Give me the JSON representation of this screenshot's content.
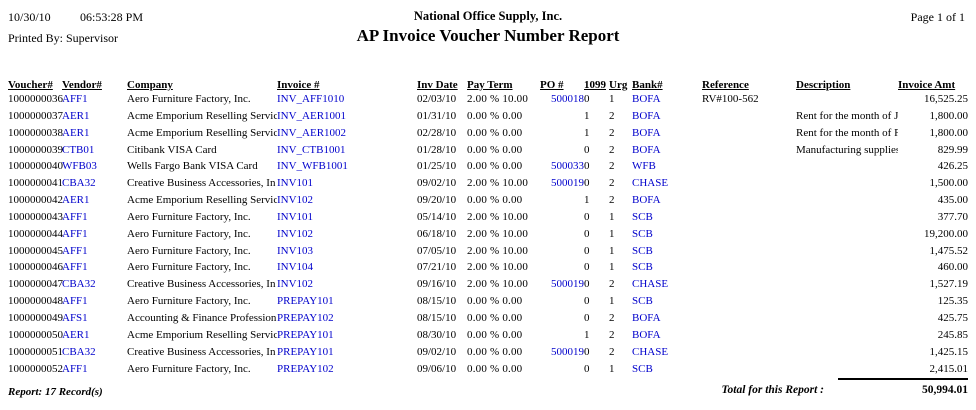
{
  "header": {
    "print_date": "10/30/10",
    "print_time": "06:53:28 PM",
    "printed_by": "Printed By: Supervisor",
    "company_name": "National Office Supply, Inc.",
    "report_title": "AP Invoice Voucher Number Report",
    "page_indicator": "Page 1 of 1"
  },
  "colors": {
    "link_blue": "#0000CC",
    "text": "#000000"
  },
  "table": {
    "columns": [
      "Voucher#",
      "Vendor#",
      "Company",
      "Invoice #",
      "Inv Date",
      "Pay Term",
      "PO #",
      "1099",
      "Urg",
      "Bank#",
      "Reference",
      "Description",
      "Invoice Amt"
    ],
    "rows": [
      {
        "voucher": "1000000036",
        "vendor": "AFF1",
        "company": "Aero Furniture Factory, Inc.",
        "invoice": "INV_AFF1010",
        "inv_date": "02/03/10",
        "pay_term": "2.00 % 10.00",
        "po": "500018",
        "f1099": "0",
        "urg": "1",
        "bank": "BOFA",
        "reference": "RV#100-562",
        "description": "",
        "amount": "16,525.25"
      },
      {
        "voucher": "1000000037",
        "vendor": "AER1",
        "company": "Acme Emporium Reselling Servic",
        "invoice": "INV_AER1001",
        "inv_date": "01/31/10",
        "pay_term": "0.00 % 0.00",
        "po": "",
        "f1099": "1",
        "urg": "2",
        "bank": "BOFA",
        "reference": "",
        "description": "Rent for the month of Ja",
        "amount": "1,800.00"
      },
      {
        "voucher": "1000000038",
        "vendor": "AER1",
        "company": "Acme Emporium Reselling Servic",
        "invoice": "INV_AER1002",
        "inv_date": "02/28/10",
        "pay_term": "0.00 % 0.00",
        "po": "",
        "f1099": "1",
        "urg": "2",
        "bank": "BOFA",
        "reference": "",
        "description": "Rent for the month of F",
        "amount": "1,800.00"
      },
      {
        "voucher": "1000000039",
        "vendor": "CTB01",
        "company": "Citibank VISA Card",
        "invoice": "INV_CTB1001",
        "inv_date": "01/28/10",
        "pay_term": "0.00 % 0.00",
        "po": "",
        "f1099": "0",
        "urg": "2",
        "bank": "BOFA",
        "reference": "",
        "description": "Manufacturing supplies",
        "amount": "829.99"
      },
      {
        "voucher": "1000000040",
        "vendor": "WFB03",
        "company": "Wells Fargo Bank VISA Card",
        "invoice": "INV_WFB1001",
        "inv_date": "01/25/10",
        "pay_term": "0.00 % 0.00",
        "po": "500033",
        "f1099": "0",
        "urg": "2",
        "bank": "WFB",
        "reference": "",
        "description": "",
        "amount": "426.25"
      },
      {
        "voucher": "1000000041",
        "vendor": "CBA32",
        "company": "Creative Business Accessories, In",
        "invoice": "INV101",
        "inv_date": "09/02/10",
        "pay_term": "2.00 % 10.00",
        "po": "500019",
        "f1099": "0",
        "urg": "2",
        "bank": "CHASE",
        "reference": "",
        "description": "",
        "amount": "1,500.00"
      },
      {
        "voucher": "1000000042",
        "vendor": "AER1",
        "company": "Acme Emporium Reselling Servic",
        "invoice": "INV102",
        "inv_date": "09/20/10",
        "pay_term": "0.00 % 0.00",
        "po": "",
        "f1099": "1",
        "urg": "2",
        "bank": "BOFA",
        "reference": "",
        "description": "",
        "amount": "435.00"
      },
      {
        "voucher": "1000000043",
        "vendor": "AFF1",
        "company": "Aero Furniture Factory, Inc.",
        "invoice": "INV101",
        "inv_date": "05/14/10",
        "pay_term": "2.00 % 10.00",
        "po": "",
        "f1099": "0",
        "urg": "1",
        "bank": "SCB",
        "reference": "",
        "description": "",
        "amount": "377.70"
      },
      {
        "voucher": "1000000044",
        "vendor": "AFF1",
        "company": "Aero Furniture Factory, Inc.",
        "invoice": "INV102",
        "inv_date": "06/18/10",
        "pay_term": "2.00 % 10.00",
        "po": "",
        "f1099": "0",
        "urg": "1",
        "bank": "SCB",
        "reference": "",
        "description": "",
        "amount": "19,200.00"
      },
      {
        "voucher": "1000000045",
        "vendor": "AFF1",
        "company": "Aero Furniture Factory, Inc.",
        "invoice": "INV103",
        "inv_date": "07/05/10",
        "pay_term": "2.00 % 10.00",
        "po": "",
        "f1099": "0",
        "urg": "1",
        "bank": "SCB",
        "reference": "",
        "description": "",
        "amount": "1,475.52"
      },
      {
        "voucher": "1000000046",
        "vendor": "AFF1",
        "company": "Aero Furniture Factory, Inc.",
        "invoice": "INV104",
        "inv_date": "07/21/10",
        "pay_term": "2.00 % 10.00",
        "po": "",
        "f1099": "0",
        "urg": "1",
        "bank": "SCB",
        "reference": "",
        "description": "",
        "amount": "460.00"
      },
      {
        "voucher": "1000000047",
        "vendor": "CBA32",
        "company": "Creative Business Accessories, In",
        "invoice": "INV102",
        "inv_date": "09/16/10",
        "pay_term": "2.00 % 10.00",
        "po": "500019",
        "f1099": "0",
        "urg": "2",
        "bank": "CHASE",
        "reference": "",
        "description": "",
        "amount": "1,527.19"
      },
      {
        "voucher": "1000000048",
        "vendor": "AFF1",
        "company": "Aero Furniture Factory, Inc.",
        "invoice": "PREPAY101",
        "inv_date": "08/15/10",
        "pay_term": "0.00 % 0.00",
        "po": "",
        "f1099": "0",
        "urg": "1",
        "bank": "SCB",
        "reference": "",
        "description": "",
        "amount": "125.35"
      },
      {
        "voucher": "1000000049",
        "vendor": "AFS1",
        "company": "Accounting & Finance Profession",
        "invoice": "PREPAY102",
        "inv_date": "08/15/10",
        "pay_term": "0.00 % 0.00",
        "po": "",
        "f1099": "0",
        "urg": "2",
        "bank": "BOFA",
        "reference": "",
        "description": "",
        "amount": "425.75"
      },
      {
        "voucher": "1000000050",
        "vendor": "AER1",
        "company": "Acme Emporium Reselling Servic",
        "invoice": "PREPAY101",
        "inv_date": "08/30/10",
        "pay_term": "0.00 % 0.00",
        "po": "",
        "f1099": "1",
        "urg": "2",
        "bank": "BOFA",
        "reference": "",
        "description": "",
        "amount": "245.85"
      },
      {
        "voucher": "1000000051",
        "vendor": "CBA32",
        "company": "Creative Business Accessories, In",
        "invoice": "PREPAY101",
        "inv_date": "09/02/10",
        "pay_term": "0.00 % 0.00",
        "po": "500019",
        "f1099": "0",
        "urg": "2",
        "bank": "CHASE",
        "reference": "",
        "description": "",
        "amount": "1,425.15"
      },
      {
        "voucher": "1000000052",
        "vendor": "AFF1",
        "company": "Aero Furniture Factory, Inc.",
        "invoice": "PREPAY102",
        "inv_date": "09/06/10",
        "pay_term": "0.00 % 0.00",
        "po": "",
        "f1099": "0",
        "urg": "1",
        "bank": "SCB",
        "reference": "",
        "description": "",
        "amount": "2,415.01"
      }
    ]
  },
  "footer": {
    "record_count": "Report: 17 Record(s)",
    "total_label": "Total for this Report :",
    "total_amount": "50,994.01"
  }
}
